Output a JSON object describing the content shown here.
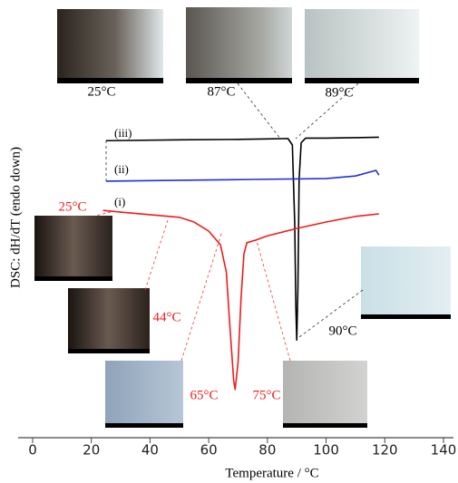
{
  "chart_data": {
    "type": "line",
    "x_label": "Temperature / °C",
    "y_label": "DSC: dH/dT (endo down)",
    "xlim": [
      0,
      140
    ],
    "xticks": [
      0,
      20,
      40,
      60,
      80,
      100,
      120,
      140
    ],
    "ylim": [
      0,
      100
    ],
    "series": [
      {
        "name": "(iii)",
        "color": "#000000",
        "x": [
          25,
          50,
          70,
          80,
          87,
          88.5,
          89.3,
          89.7,
          90,
          90.4,
          90.8,
          91.5,
          93,
          100,
          110,
          118
        ],
        "values": [
          69,
          69.2,
          69.3,
          69.4,
          69.5,
          68,
          50,
          30,
          22.7,
          35,
          60,
          68.5,
          69.6,
          69.6,
          69.7,
          69.8
        ]
      },
      {
        "name": "(ii)",
        "color": "#1f2fd8",
        "x": [
          25,
          50,
          75,
          100,
          110,
          117,
          118
        ],
        "values": [
          59.6,
          59.8,
          60,
          60.2,
          60.8,
          62.1,
          61
        ]
      },
      {
        "name": "(i)",
        "color": "#ee1c1c",
        "x": [
          24,
          30,
          40,
          50,
          55,
          60,
          64,
          66,
          67,
          68.5,
          69,
          70,
          71,
          72,
          73,
          76,
          80,
          90,
          100,
          110,
          118
        ],
        "values": [
          52.8,
          52.4,
          51.8,
          51.2,
          50.1,
          48,
          44.8,
          38.5,
          28,
          13.3,
          11.2,
          17.5,
          32.2,
          42.7,
          45.3,
          45.9,
          46.9,
          48.6,
          50.1,
          51.4,
          52
        ]
      }
    ],
    "annotations": [
      {
        "text": "25°C",
        "color": "#000000"
      },
      {
        "text": "87°C",
        "color": "#000000"
      },
      {
        "text": "89°C",
        "color": "#000000"
      },
      {
        "text": "25°C",
        "color": "#ee1c1c"
      },
      {
        "text": "44°C",
        "color": "#ee1c1c"
      },
      {
        "text": "65°C",
        "color": "#ee1c1c"
      },
      {
        "text": "75°C",
        "color": "#ee1c1c"
      },
      {
        "text": "90°C",
        "color": "#000000"
      }
    ]
  }
}
